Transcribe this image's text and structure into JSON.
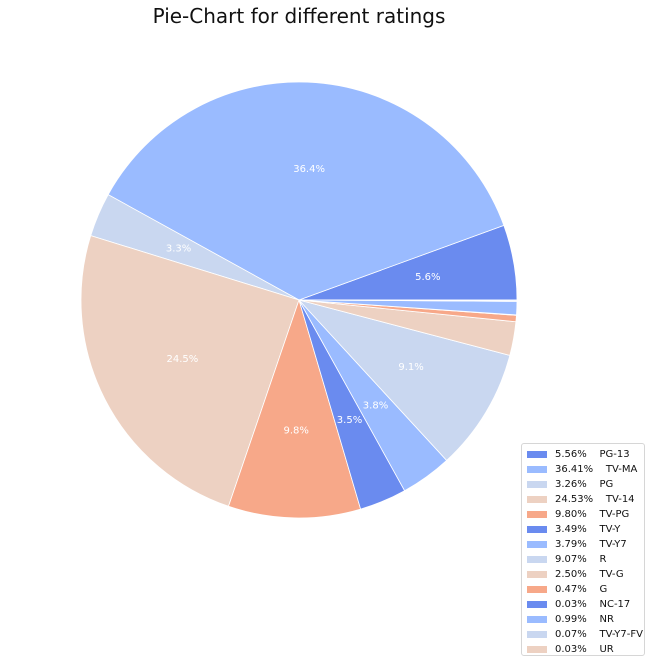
{
  "chart_data": {
    "type": "pie",
    "title": "Pie-Chart for different ratings",
    "start_angle_deg": 0,
    "direction": "counterclockwise",
    "legend_position": "lower-right",
    "slices": [
      {
        "value": 5.56,
        "pct_label": "5.6%",
        "legend": "5.56%    PG-13",
        "color": "#6a8bef"
      },
      {
        "value": 36.41,
        "pct_label": "36.4%",
        "legend": "36.41%    TV-MA",
        "color": "#9abbff"
      },
      {
        "value": 3.26,
        "pct_label": "3.3%",
        "legend": "3.26%    PG",
        "color": "#c9d7f0"
      },
      {
        "value": 24.53,
        "pct_label": "24.5%",
        "legend": "24.53%    TV-14",
        "color": "#edd1c2"
      },
      {
        "value": 9.8,
        "pct_label": "9.8%",
        "legend": "9.80%    TV-PG",
        "color": "#f7a889"
      },
      {
        "value": 3.49,
        "pct_label": "3.5%",
        "legend": "3.49%    TV-Y",
        "color": "#6a8bef"
      },
      {
        "value": 3.79,
        "pct_label": "3.8%",
        "legend": "3.79%    TV-Y7",
        "color": "#9abbff"
      },
      {
        "value": 9.07,
        "pct_label": "9.1%",
        "legend": "9.07%    R",
        "color": "#c9d7f0"
      },
      {
        "value": 2.5,
        "pct_label": "",
        "legend": "2.50%    TV-G",
        "color": "#edd1c2"
      },
      {
        "value": 0.47,
        "pct_label": "",
        "legend": "0.47%    G",
        "color": "#f7a889"
      },
      {
        "value": 0.03,
        "pct_label": "",
        "legend": "0.03%    NC-17",
        "color": "#6a8bef"
      },
      {
        "value": 0.99,
        "pct_label": "",
        "legend": "0.99%    NR",
        "color": "#9abbff"
      },
      {
        "value": 0.07,
        "pct_label": "",
        "legend": "0.07%    TV-Y7-FV",
        "color": "#c9d7f0"
      },
      {
        "value": 0.03,
        "pct_label": "",
        "legend": "0.03%    UR",
        "color": "#edd1c2"
      }
    ]
  }
}
